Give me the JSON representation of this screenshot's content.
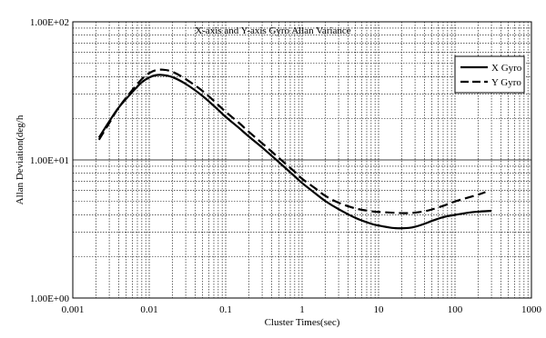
{
  "chart_data": {
    "type": "line",
    "title": "X-axis and Y-axis Gyro Allan Variance",
    "xlabel": "Cluster Times(sec)",
    "ylabel": "Allan Deviation(deg/h",
    "xscale": "log",
    "yscale": "log",
    "xlim": [
      0.001,
      1000
    ],
    "ylim": [
      1,
      100
    ],
    "x_tick_labels": [
      "0.001",
      "0.01",
      "0.1",
      "1",
      "10",
      "100",
      "1000"
    ],
    "y_tick_labels": [
      "1.00E+00",
      "1.00E+01",
      "1.00E+02"
    ],
    "grid": true,
    "legend_position": "top-right",
    "series": [
      {
        "name": "X Gyro",
        "style": "solid",
        "color": "#000000",
        "x": [
          0.0022,
          0.003,
          0.004,
          0.006,
          0.008,
          0.01,
          0.012,
          0.015,
          0.02,
          0.03,
          0.05,
          0.08,
          0.1,
          0.15,
          0.2,
          0.3,
          0.5,
          0.8,
          1,
          1.5,
          2,
          3,
          5,
          8,
          10,
          15,
          20,
          25,
          30,
          40,
          50,
          70,
          100,
          150,
          200,
          300
        ],
        "y": [
          14.5,
          19.0,
          24.0,
          31.0,
          36.5,
          39.5,
          41.0,
          41.2,
          39.8,
          35.5,
          29.0,
          23.0,
          20.5,
          17.0,
          14.8,
          12.3,
          9.6,
          7.6,
          6.8,
          5.7,
          5.05,
          4.4,
          3.8,
          3.45,
          3.35,
          3.22,
          3.2,
          3.22,
          3.28,
          3.45,
          3.62,
          3.85,
          4.0,
          4.15,
          4.22,
          4.28
        ]
      },
      {
        "name": "Y Gyro",
        "style": "dashed",
        "color": "#000000",
        "x": [
          0.0022,
          0.003,
          0.004,
          0.006,
          0.008,
          0.01,
          0.012,
          0.015,
          0.02,
          0.03,
          0.05,
          0.08,
          0.1,
          0.15,
          0.2,
          0.3,
          0.5,
          0.8,
          1,
          1.5,
          2,
          3,
          5,
          8,
          10,
          15,
          20,
          25,
          30,
          40,
          50,
          70,
          100,
          150,
          200,
          250
        ],
        "y": [
          14.0,
          18.5,
          24.0,
          32.0,
          38.5,
          42.5,
          44.5,
          45.0,
          43.5,
          38.5,
          31.5,
          25.0,
          22.3,
          18.5,
          16.0,
          13.2,
          10.3,
          8.2,
          7.3,
          6.2,
          5.5,
          4.9,
          4.45,
          4.25,
          4.2,
          4.15,
          4.12,
          4.12,
          4.15,
          4.25,
          4.38,
          4.65,
          5.0,
          5.35,
          5.6,
          5.85
        ]
      }
    ]
  }
}
